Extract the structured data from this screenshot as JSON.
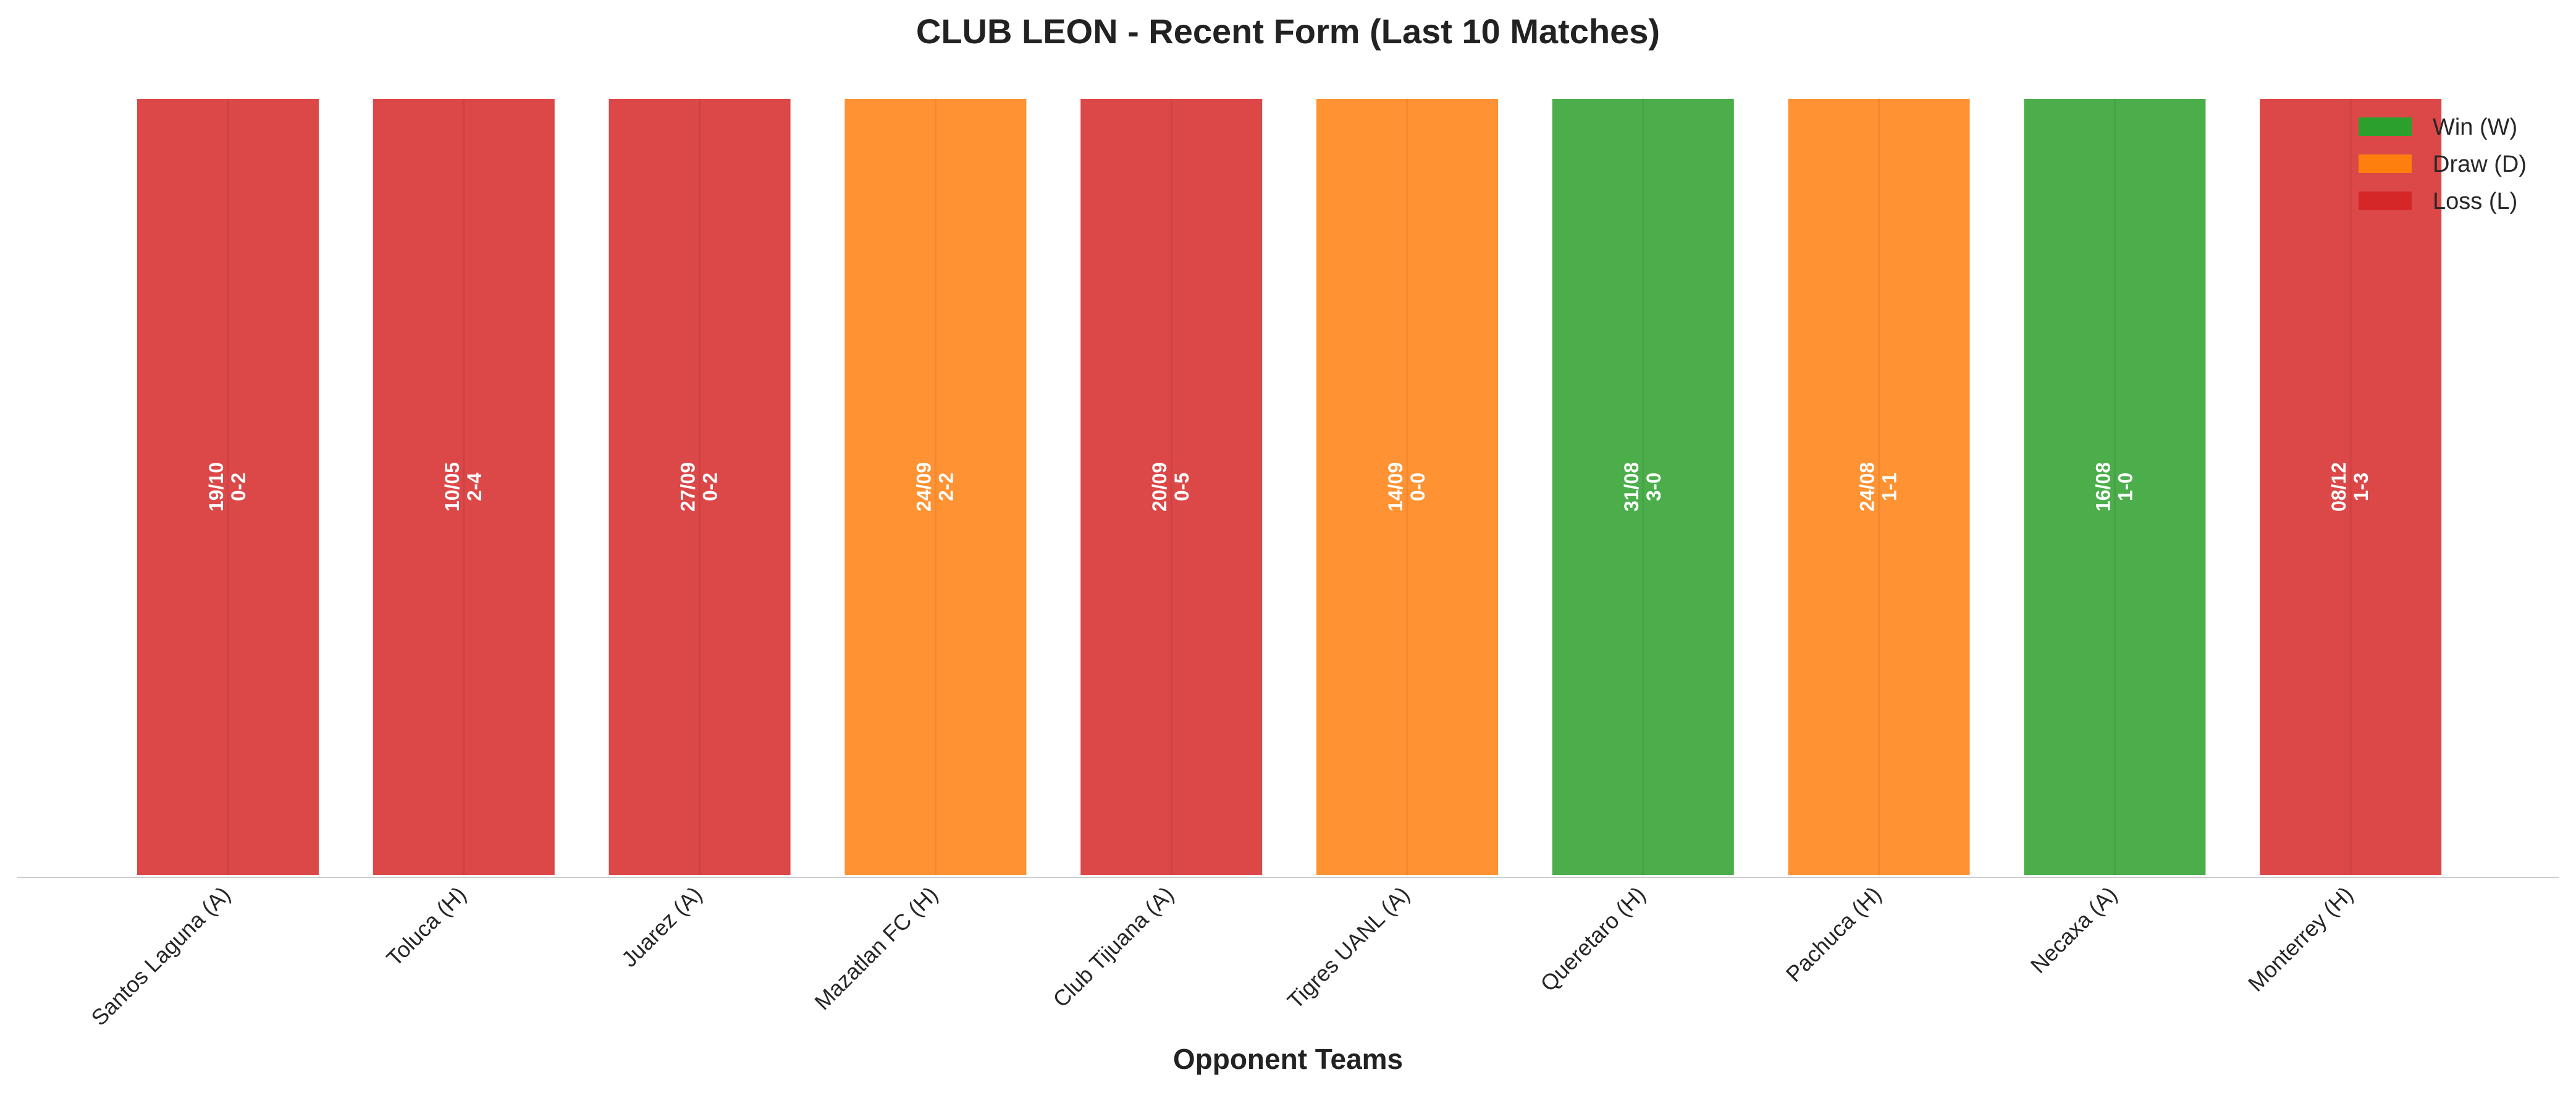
{
  "chart_data": {
    "type": "bar",
    "title": "CLUB LEON - Recent Form (Last 10 Matches)",
    "xlabel": "Opponent Teams",
    "ylabel": "",
    "categories": [
      "Santos Laguna (A)",
      "Toluca (H)",
      "Juarez (A)",
      "Mazatlan FC (H)",
      "Club Tijuana (A)",
      "Tigres UANL (A)",
      "Queretaro (H)",
      "Pachuca (H)",
      "Necaxa (A)",
      "Monterrey (H)"
    ],
    "values": [
      1,
      1,
      1,
      1,
      1,
      1,
      1,
      1,
      1,
      1
    ],
    "results": [
      "L",
      "L",
      "L",
      "D",
      "L",
      "D",
      "W",
      "D",
      "W",
      "L"
    ],
    "dates": [
      "19/10",
      "10/05",
      "27/09",
      "24/09",
      "20/09",
      "14/09",
      "31/08",
      "24/08",
      "16/08",
      "08/12"
    ],
    "scores": [
      "0-2",
      "2-4",
      "0-2",
      "2-2",
      "0-5",
      "0-0",
      "3-0",
      "1-1",
      "1-0",
      "1-3"
    ],
    "ylim": [
      0,
      1
    ],
    "grid": false,
    "legend": {
      "placement": "top-right",
      "entries": [
        {
          "key": "W",
          "label": "Win (W)",
          "color": "#2ca02c"
        },
        {
          "key": "D",
          "label": "Draw (D)",
          "color": "#ff7f0e"
        },
        {
          "key": "L",
          "label": "Loss (L)",
          "color": "#d62728"
        }
      ]
    },
    "colors": {
      "W": "#2ca02c",
      "D": "#ff7f0e",
      "L": "#d62728"
    }
  }
}
